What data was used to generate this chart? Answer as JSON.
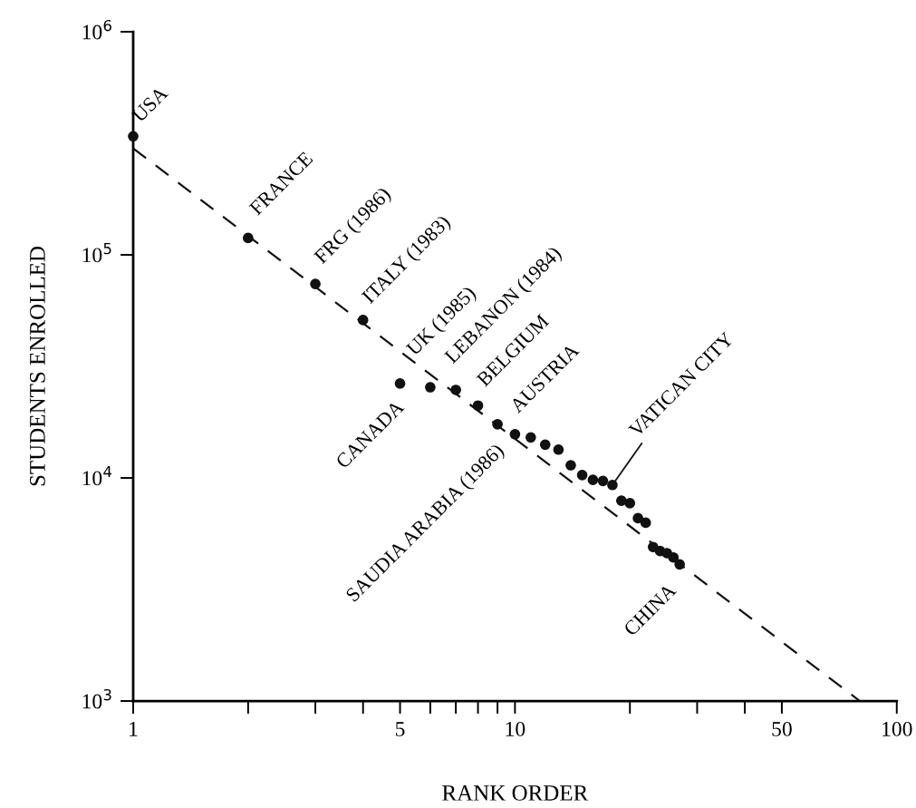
{
  "chart_data": {
    "type": "scatter",
    "log": "xy",
    "xlabel": "RANK ORDER",
    "ylabel": "STUDENTS ENROLLED",
    "xlim": [
      1,
      100
    ],
    "ylim": [
      1000,
      1000000
    ],
    "xticks": [
      1,
      {
        "value": 2,
        "label": null
      },
      {
        "value": 3,
        "label": null
      },
      {
        "value": 4,
        "label": null
      },
      5,
      {
        "value": 6,
        "label": null
      },
      {
        "value": 7,
        "label": null
      },
      {
        "value": 8,
        "label": null
      },
      {
        "value": 9,
        "label": null
      },
      10,
      {
        "value": 20,
        "label": null
      },
      {
        "value": 30,
        "label": null
      },
      {
        "value": 40,
        "label": null
      },
      50,
      100
    ],
    "yticks": [
      {
        "value": 1000,
        "label": "10$^{3}$"
      },
      {
        "value": 10000,
        "label": "10$^{4}$"
      },
      {
        "value": 100000,
        "label": "10$^{5}$"
      },
      {
        "value": 1000000,
        "label": "10$^{6}$"
      }
    ],
    "marker": "circle",
    "series": [
      {
        "color": "#111111",
        "x": [
          1,
          2,
          3,
          4,
          5,
          6,
          7,
          8,
          9,
          10,
          11,
          12,
          13,
          14,
          15,
          16,
          17,
          18,
          19,
          20,
          21,
          22,
          23,
          24,
          25,
          26,
          27
        ],
        "values": [
          340000,
          119000,
          74000,
          51000,
          26500,
          25500,
          24800,
          21100,
          17400,
          15700,
          15200,
          14100,
          13400,
          11400,
          10300,
          9800,
          9700,
          9300,
          7900,
          7700,
          6600,
          6300,
          4900,
          4700,
          4600,
          4400,
          4100
        ]
      },
      {
        "type": "line",
        "color": "#111111",
        "line_style": "dashed",
        "marker": "none",
        "x": [
          1,
          80
        ],
        "values": [
          300000,
          1000
        ]
      }
    ],
    "annotations": [
      {
        "text": "USA",
        "x": 1,
        "y": 340000
      },
      {
        "text": "FRANCE",
        "x": 2,
        "y": 119000
      },
      {
        "text": "FRG (1986)",
        "x": 3,
        "y": 74000
      },
      {
        "text": "ITALY (1983)",
        "x": 4,
        "y": 51000
      },
      {
        "text": "CANADA",
        "x": 5,
        "y": 26500
      },
      {
        "text": "UK (1985)",
        "x": 6,
        "y": 25500
      },
      {
        "text": "LEBANON (1984)",
        "x": 7,
        "y": 24800
      },
      {
        "text": "BELGIUM",
        "x": 8,
        "y": 21100
      },
      {
        "text": "SAUDIA ARABIA (1986)",
        "x": 9,
        "y": 17400
      },
      {
        "text": "AUSTRIA",
        "x": 10,
        "y": 15700
      },
      {
        "text": "VATICAN CITY",
        "x": 18,
        "y": 9300
      },
      {
        "text": "CHINA",
        "x": 27,
        "y": 4100
      }
    ]
  }
}
